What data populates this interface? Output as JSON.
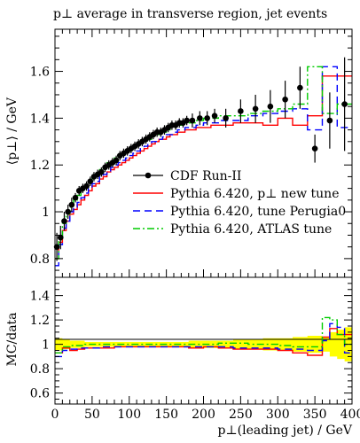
{
  "chart_data": [
    {
      "type": "line",
      "title": "p⊥ average in transverse region, jet events",
      "xlabel": "",
      "ylabel": "⟨p⊥⟩ / GeV",
      "xlim": [
        0,
        400
      ],
      "ylim": [
        0.72,
        1.78
      ],
      "y_ticks": [
        "0.8",
        "1",
        "1.2",
        "1.4",
        "1.6"
      ],
      "y_tick_values": [
        0.8,
        1.0,
        1.2,
        1.4,
        1.6
      ],
      "bin_edges": [
        0,
        5,
        10,
        15,
        20,
        25,
        30,
        35,
        40,
        45,
        50,
        55,
        60,
        65,
        70,
        75,
        80,
        85,
        90,
        95,
        100,
        105,
        110,
        115,
        120,
        125,
        130,
        135,
        140,
        145,
        150,
        155,
        160,
        165,
        170,
        175,
        180,
        190,
        200,
        210,
        220,
        240,
        260,
        280,
        300,
        320,
        340,
        360,
        380,
        400
      ],
      "legend": [
        {
          "label": "CDF Run-II",
          "color": "#000000",
          "style": "marker"
        },
        {
          "label": "Pythia 6.420, p⊥ new tune",
          "color": "#ff0000",
          "style": "solid"
        },
        {
          "label": "Pythia 6.420, tune Perugia0",
          "color": "#0000ff",
          "style": "dashed"
        },
        {
          "label": "Pythia 6.420, ATLAS tune",
          "color": "#00cc00",
          "style": "dashdot"
        }
      ],
      "legend_position": "center-right",
      "series": [
        {
          "name": "CDF Run-II",
          "kind": "points",
          "color": "#000000",
          "x": [
            2.5,
            7.5,
            12.5,
            17.5,
            22.5,
            27.5,
            32.5,
            37.5,
            42.5,
            47.5,
            52.5,
            57.5,
            62.5,
            67.5,
            72.5,
            77.5,
            82.5,
            87.5,
            92.5,
            97.5,
            102.5,
            107.5,
            112.5,
            117.5,
            122.5,
            127.5,
            132.5,
            137.5,
            142.5,
            147.5,
            152.5,
            157.5,
            162.5,
            167.5,
            172.5,
            177.5,
            185,
            195,
            205,
            215,
            230,
            250,
            270,
            290,
            310,
            330,
            350,
            370,
            390
          ],
          "y": [
            0.85,
            0.89,
            0.96,
            1.0,
            1.03,
            1.06,
            1.09,
            1.1,
            1.11,
            1.13,
            1.15,
            1.16,
            1.17,
            1.19,
            1.2,
            1.21,
            1.22,
            1.24,
            1.25,
            1.26,
            1.27,
            1.28,
            1.29,
            1.3,
            1.31,
            1.32,
            1.33,
            1.34,
            1.34,
            1.35,
            1.36,
            1.37,
            1.37,
            1.38,
            1.38,
            1.39,
            1.39,
            1.4,
            1.4,
            1.41,
            1.4,
            1.43,
            1.44,
            1.45,
            1.48,
            1.53,
            1.27,
            1.39,
            1.46
          ],
          "err": [
            0.06,
            0.05,
            0.04,
            0.03,
            0.03,
            0.02,
            0.02,
            0.02,
            0.02,
            0.02,
            0.02,
            0.02,
            0.02,
            0.02,
            0.02,
            0.02,
            0.02,
            0.02,
            0.02,
            0.02,
            0.02,
            0.02,
            0.02,
            0.02,
            0.02,
            0.02,
            0.02,
            0.02,
            0.02,
            0.02,
            0.02,
            0.02,
            0.02,
            0.02,
            0.02,
            0.02,
            0.03,
            0.03,
            0.03,
            0.03,
            0.04,
            0.05,
            0.06,
            0.07,
            0.08,
            0.09,
            0.06,
            0.12,
            0.2
          ]
        },
        {
          "name": "Pythia 6.420, p⊥ new tune",
          "kind": "histogram",
          "color": "#ff0000",
          "dash": "",
          "values": [
            0.8,
            0.87,
            0.92,
            0.96,
            0.99,
            1.01,
            1.03,
            1.05,
            1.07,
            1.09,
            1.11,
            1.12,
            1.14,
            1.15,
            1.17,
            1.18,
            1.19,
            1.2,
            1.21,
            1.22,
            1.23,
            1.24,
            1.25,
            1.26,
            1.27,
            1.28,
            1.29,
            1.3,
            1.31,
            1.31,
            1.32,
            1.33,
            1.33,
            1.34,
            1.34,
            1.35,
            1.35,
            1.36,
            1.36,
            1.37,
            1.37,
            1.38,
            1.38,
            1.37,
            1.4,
            1.37,
            1.41,
            1.58,
            1.58
          ]
        },
        {
          "name": "Pythia 6.420, tune Perugia0",
          "kind": "histogram",
          "color": "#0000ff",
          "dash": "8 5",
          "values": [
            0.77,
            0.86,
            0.93,
            0.96,
            1.0,
            1.02,
            1.04,
            1.06,
            1.08,
            1.1,
            1.12,
            1.13,
            1.15,
            1.16,
            1.17,
            1.19,
            1.2,
            1.21,
            1.22,
            1.23,
            1.24,
            1.25,
            1.26,
            1.27,
            1.28,
            1.29,
            1.3,
            1.3,
            1.31,
            1.32,
            1.33,
            1.33,
            1.34,
            1.35,
            1.35,
            1.36,
            1.36,
            1.37,
            1.38,
            1.38,
            1.39,
            1.39,
            1.41,
            1.42,
            1.43,
            1.44,
            1.35,
            1.62,
            1.36
          ]
        },
        {
          "name": "Pythia 6.420, ATLAS tune",
          "kind": "histogram",
          "color": "#00cc00",
          "dash": "8 3 2 3",
          "values": [
            0.8,
            0.88,
            0.95,
            0.99,
            1.02,
            1.05,
            1.07,
            1.09,
            1.11,
            1.13,
            1.15,
            1.16,
            1.18,
            1.19,
            1.21,
            1.22,
            1.23,
            1.24,
            1.25,
            1.26,
            1.27,
            1.28,
            1.29,
            1.3,
            1.31,
            1.31,
            1.32,
            1.33,
            1.34,
            1.34,
            1.35,
            1.36,
            1.36,
            1.37,
            1.37,
            1.38,
            1.38,
            1.39,
            1.4,
            1.4,
            1.41,
            1.41,
            1.42,
            1.43,
            1.44,
            1.46,
            1.62,
            1.42,
            1.46
          ]
        }
      ]
    },
    {
      "type": "line",
      "title": "",
      "xlabel": "p⊥(leading jet) / GeV",
      "ylabel": "MC/data",
      "xlim": [
        0,
        400
      ],
      "ylim": [
        0.51,
        1.55
      ],
      "x_ticks": [
        "0",
        "50",
        "100",
        "150",
        "200",
        "250",
        "300",
        "350",
        "400"
      ],
      "x_tick_values": [
        0,
        50,
        100,
        150,
        200,
        250,
        300,
        350,
        400
      ],
      "y_ticks": [
        "0.6",
        "0.8",
        "1",
        "1.2",
        "1.4"
      ],
      "y_tick_values": [
        0.6,
        0.8,
        1.0,
        1.2,
        1.4
      ],
      "bin_edges": [
        0,
        10,
        20,
        30,
        40,
        60,
        80,
        100,
        120,
        140,
        160,
        180,
        200,
        220,
        240,
        260,
        280,
        300,
        320,
        340,
        360,
        370,
        380,
        390,
        400
      ],
      "band": {
        "color": "#ffff00",
        "lower": [
          0.95,
          0.96,
          0.97,
          0.97,
          0.98,
          0.98,
          0.98,
          0.98,
          0.98,
          0.98,
          0.98,
          0.97,
          0.97,
          0.97,
          0.96,
          0.96,
          0.95,
          0.95,
          0.94,
          0.93,
          0.94,
          0.9,
          0.88,
          0.86
        ],
        "upper": [
          1.05,
          1.04,
          1.03,
          1.03,
          1.02,
          1.02,
          1.02,
          1.02,
          1.02,
          1.02,
          1.02,
          1.03,
          1.03,
          1.03,
          1.04,
          1.04,
          1.05,
          1.05,
          1.06,
          1.07,
          1.06,
          1.1,
          1.12,
          1.14
        ]
      },
      "series": [
        {
          "name": "Pythia 6.420, p⊥ new tune",
          "color": "#ff0000",
          "dash": "",
          "values": [
            0.93,
            0.97,
            0.95,
            0.96,
            0.97,
            0.97,
            0.98,
            0.98,
            0.98,
            0.98,
            0.98,
            0.97,
            0.98,
            0.97,
            0.96,
            0.96,
            0.96,
            0.95,
            0.93,
            0.91,
            1.06,
            1.13,
            1.08,
            1.08
          ]
        },
        {
          "name": "Pythia 6.420, tune Perugia0",
          "color": "#0000ff",
          "dash": "8 5",
          "values": [
            0.9,
            0.95,
            0.96,
            0.97,
            0.97,
            0.98,
            0.98,
            0.98,
            0.98,
            0.98,
            0.98,
            0.98,
            0.98,
            0.98,
            0.97,
            0.97,
            0.97,
            0.96,
            0.96,
            0.95,
            1.03,
            1.17,
            1.14,
            0.93
          ]
        },
        {
          "name": "Pythia 6.420, ATLAS tune",
          "color": "#00cc00",
          "dash": "8 3 2 3",
          "values": [
            0.93,
            0.98,
            0.99,
            0.99,
            1.0,
            1.0,
            1.0,
            1.0,
            1.0,
            1.0,
            1.0,
            1.0,
            1.0,
            1.01,
            1.01,
            1.0,
            1.0,
            0.99,
            0.98,
            0.98,
            1.22,
            1.2,
            1.08,
            1.0
          ]
        }
      ]
    }
  ]
}
